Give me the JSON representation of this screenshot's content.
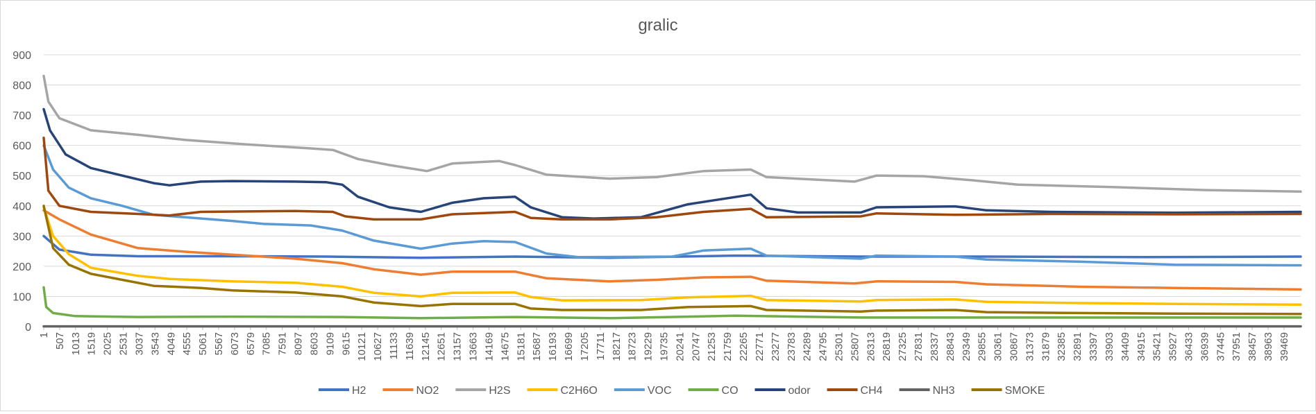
{
  "chart_data": {
    "type": "line",
    "title": "gralic",
    "xlabel": "",
    "ylabel": "",
    "ylim": [
      0,
      900
    ],
    "yticks": [
      0,
      100,
      200,
      300,
      400,
      500,
      600,
      700,
      800,
      900
    ],
    "xlim": [
      1,
      40000
    ],
    "xticks": [
      1,
      507,
      1013,
      1519,
      2025,
      2531,
      3037,
      3543,
      4049,
      4555,
      5061,
      5567,
      6073,
      6579,
      7085,
      7591,
      8097,
      8603,
      9109,
      9615,
      10121,
      10627,
      11133,
      11639,
      12145,
      12651,
      13157,
      13663,
      14169,
      14675,
      15181,
      15687,
      16193,
      16699,
      17205,
      17711,
      18217,
      18723,
      19229,
      19735,
      20241,
      20747,
      21253,
      21759,
      22265,
      22771,
      23277,
      23783,
      24289,
      24795,
      25301,
      25807,
      26313,
      26819,
      27325,
      27831,
      28337,
      28843,
      29349,
      29855,
      30361,
      30867,
      31373,
      31879,
      32385,
      32891,
      33397,
      33903,
      34409,
      34915,
      35421,
      35927,
      36433,
      36939,
      37445,
      37951,
      38457,
      38963,
      39469
    ],
    "grid": "horizontal",
    "legend_position": "bottom",
    "series": [
      {
        "name": "H2",
        "color": "#4472C4",
        "points": [
          [
            1,
            300
          ],
          [
            500,
            255
          ],
          [
            1500,
            238
          ],
          [
            3000,
            233
          ],
          [
            6000,
            233
          ],
          [
            9000,
            232
          ],
          [
            12000,
            228
          ],
          [
            15000,
            232
          ],
          [
            18000,
            228
          ],
          [
            22000,
            235
          ],
          [
            26000,
            232
          ],
          [
            30000,
            232
          ],
          [
            35000,
            230
          ],
          [
            40000,
            232
          ]
        ]
      },
      {
        "name": "NO2",
        "color": "#ED7D31",
        "points": [
          [
            1,
            385
          ],
          [
            500,
            355
          ],
          [
            1500,
            305
          ],
          [
            3000,
            260
          ],
          [
            4500,
            248
          ],
          [
            6000,
            238
          ],
          [
            8000,
            225
          ],
          [
            9500,
            210
          ],
          [
            10500,
            190
          ],
          [
            12000,
            172
          ],
          [
            13000,
            182
          ],
          [
            15000,
            182
          ],
          [
            16000,
            160
          ],
          [
            18000,
            150
          ],
          [
            19500,
            155
          ],
          [
            21000,
            163
          ],
          [
            22500,
            165
          ],
          [
            23000,
            152
          ],
          [
            25800,
            143
          ],
          [
            26500,
            150
          ],
          [
            29000,
            148
          ],
          [
            30000,
            140
          ],
          [
            33000,
            132
          ],
          [
            36000,
            128
          ],
          [
            40000,
            123
          ]
        ]
      },
      {
        "name": "H2S",
        "color": "#A5A5A5",
        "points": [
          [
            1,
            830
          ],
          [
            150,
            745
          ],
          [
            500,
            690
          ],
          [
            1500,
            650
          ],
          [
            3000,
            635
          ],
          [
            4500,
            618
          ],
          [
            6500,
            603
          ],
          [
            8500,
            590
          ],
          [
            9200,
            585
          ],
          [
            10000,
            555
          ],
          [
            11000,
            535
          ],
          [
            12200,
            515
          ],
          [
            13000,
            540
          ],
          [
            14500,
            548
          ],
          [
            15000,
            535
          ],
          [
            16000,
            503
          ],
          [
            18000,
            490
          ],
          [
            19500,
            495
          ],
          [
            21000,
            515
          ],
          [
            22500,
            520
          ],
          [
            23000,
            495
          ],
          [
            25800,
            480
          ],
          [
            26500,
            500
          ],
          [
            28000,
            498
          ],
          [
            29500,
            485
          ],
          [
            31000,
            470
          ],
          [
            34000,
            462
          ],
          [
            37000,
            452
          ],
          [
            40000,
            447
          ]
        ]
      },
      {
        "name": "C2H6O",
        "color": "#FFC000",
        "points": [
          [
            1,
            395
          ],
          [
            300,
            300
          ],
          [
            800,
            240
          ],
          [
            1500,
            195
          ],
          [
            3000,
            168
          ],
          [
            4000,
            158
          ],
          [
            6000,
            150
          ],
          [
            8000,
            145
          ],
          [
            9500,
            132
          ],
          [
            10500,
            112
          ],
          [
            12000,
            100
          ],
          [
            13000,
            112
          ],
          [
            15000,
            113
          ],
          [
            15500,
            98
          ],
          [
            16500,
            87
          ],
          [
            19000,
            88
          ],
          [
            20500,
            97
          ],
          [
            22500,
            102
          ],
          [
            23000,
            88
          ],
          [
            26000,
            83
          ],
          [
            26500,
            88
          ],
          [
            29000,
            90
          ],
          [
            30000,
            82
          ],
          [
            33000,
            78
          ],
          [
            36000,
            75
          ],
          [
            40000,
            73
          ]
        ]
      },
      {
        "name": "VOC",
        "color": "#5B9BD5",
        "points": [
          [
            1,
            600
          ],
          [
            300,
            520
          ],
          [
            800,
            460
          ],
          [
            1500,
            425
          ],
          [
            2500,
            400
          ],
          [
            3500,
            370
          ],
          [
            4500,
            362
          ],
          [
            6000,
            350
          ],
          [
            7000,
            340
          ],
          [
            8500,
            335
          ],
          [
            9500,
            318
          ],
          [
            10500,
            285
          ],
          [
            12000,
            258
          ],
          [
            13000,
            275
          ],
          [
            14000,
            283
          ],
          [
            15000,
            280
          ],
          [
            16000,
            242
          ],
          [
            17000,
            230
          ],
          [
            20000,
            232
          ],
          [
            21000,
            252
          ],
          [
            22500,
            258
          ],
          [
            23000,
            235
          ],
          [
            26000,
            225
          ],
          [
            26500,
            235
          ],
          [
            29000,
            232
          ],
          [
            30000,
            222
          ],
          [
            33000,
            215
          ],
          [
            36000,
            205
          ],
          [
            40000,
            203
          ]
        ]
      },
      {
        "name": "CO",
        "color": "#70AD47",
        "points": [
          [
            1,
            130
          ],
          [
            80,
            65
          ],
          [
            300,
            45
          ],
          [
            1000,
            35
          ],
          [
            3000,
            32
          ],
          [
            6000,
            33
          ],
          [
            9500,
            32
          ],
          [
            12000,
            28
          ],
          [
            15000,
            32
          ],
          [
            18000,
            28
          ],
          [
            22000,
            36
          ],
          [
            26000,
            30
          ],
          [
            30000,
            30
          ],
          [
            35000,
            30
          ],
          [
            40000,
            30
          ]
        ]
      },
      {
        "name": "odor",
        "color": "#264478",
        "points": [
          [
            1,
            720
          ],
          [
            200,
            650
          ],
          [
            700,
            570
          ],
          [
            1500,
            525
          ],
          [
            2500,
            500
          ],
          [
            3500,
            475
          ],
          [
            4000,
            468
          ],
          [
            5000,
            480
          ],
          [
            6000,
            482
          ],
          [
            8000,
            480
          ],
          [
            9000,
            478
          ],
          [
            9500,
            470
          ],
          [
            10000,
            430
          ],
          [
            11000,
            395
          ],
          [
            12000,
            380
          ],
          [
            13000,
            410
          ],
          [
            14000,
            425
          ],
          [
            15000,
            430
          ],
          [
            15500,
            395
          ],
          [
            16500,
            362
          ],
          [
            17500,
            358
          ],
          [
            19000,
            362
          ],
          [
            20500,
            405
          ],
          [
            22500,
            437
          ],
          [
            23000,
            392
          ],
          [
            24000,
            378
          ],
          [
            26000,
            378
          ],
          [
            26500,
            395
          ],
          [
            29000,
            398
          ],
          [
            30000,
            385
          ],
          [
            32000,
            380
          ],
          [
            36000,
            377
          ],
          [
            40000,
            380
          ]
        ]
      },
      {
        "name": "CH4",
        "color": "#9E480E",
        "points": [
          [
            1,
            625
          ],
          [
            150,
            450
          ],
          [
            500,
            400
          ],
          [
            1500,
            380
          ],
          [
            3000,
            373
          ],
          [
            4000,
            368
          ],
          [
            5000,
            380
          ],
          [
            8000,
            383
          ],
          [
            9200,
            380
          ],
          [
            9600,
            365
          ],
          [
            10500,
            355
          ],
          [
            12000,
            355
          ],
          [
            13000,
            372
          ],
          [
            15000,
            380
          ],
          [
            15500,
            360
          ],
          [
            16500,
            355
          ],
          [
            18000,
            355
          ],
          [
            19500,
            362
          ],
          [
            21000,
            380
          ],
          [
            22500,
            390
          ],
          [
            23000,
            362
          ],
          [
            26000,
            365
          ],
          [
            26500,
            375
          ],
          [
            29000,
            370
          ],
          [
            32000,
            373
          ],
          [
            36000,
            372
          ],
          [
            40000,
            373
          ]
        ]
      },
      {
        "name": "NH3",
        "color": "#636363",
        "points": [
          [
            1,
            1
          ],
          [
            40000,
            1
          ]
        ]
      },
      {
        "name": "SMOKE",
        "color": "#997300",
        "points": [
          [
            1,
            400
          ],
          [
            300,
            260
          ],
          [
            800,
            205
          ],
          [
            1500,
            175
          ],
          [
            2500,
            155
          ],
          [
            3500,
            135
          ],
          [
            5000,
            128
          ],
          [
            6000,
            120
          ],
          [
            8000,
            113
          ],
          [
            9500,
            100
          ],
          [
            10500,
            80
          ],
          [
            12000,
            68
          ],
          [
            13000,
            75
          ],
          [
            15000,
            75
          ],
          [
            15500,
            60
          ],
          [
            16500,
            55
          ],
          [
            19000,
            55
          ],
          [
            20500,
            65
          ],
          [
            22500,
            68
          ],
          [
            23000,
            55
          ],
          [
            26000,
            50
          ],
          [
            26500,
            53
          ],
          [
            29000,
            55
          ],
          [
            30000,
            48
          ],
          [
            33000,
            45
          ],
          [
            36000,
            43
          ],
          [
            40000,
            42
          ]
        ]
      }
    ]
  }
}
